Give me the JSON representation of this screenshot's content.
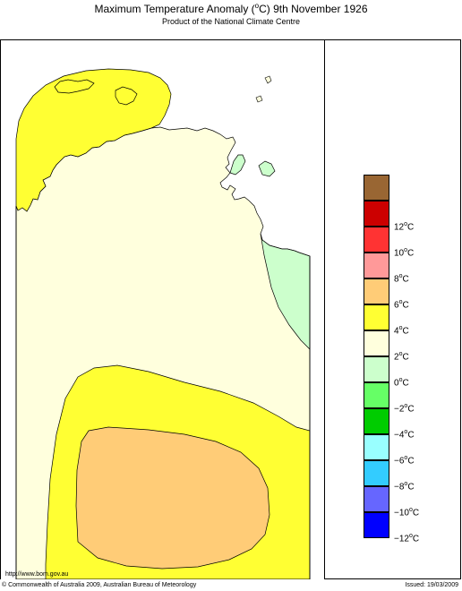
{
  "header": {
    "title_prefix": "Maximum Temperature Anomaly (",
    "title_unit_sup": "o",
    "title_suffix": "C)  9th November 1926",
    "subtitle": "Product of the National Climate Centre"
  },
  "legend": {
    "items": [
      {
        "label": "",
        "color": "#996633"
      },
      {
        "label": "12",
        "color": "#cc0000"
      },
      {
        "label": "10",
        "color": "#ff3333"
      },
      {
        "label": "8",
        "color": "#ff9999"
      },
      {
        "label": "6",
        "color": "#ffcc77"
      },
      {
        "label": "4",
        "color": "#ffff33"
      },
      {
        "label": "2",
        "color": "#ffffdd"
      },
      {
        "label": "0",
        "color": "#ccffcc"
      },
      {
        "label": "−2",
        "color": "#66ff66"
      },
      {
        "label": "−4",
        "color": "#00cc00"
      },
      {
        "label": "−6",
        "color": "#99ffff"
      },
      {
        "label": "−8",
        "color": "#33ccff"
      },
      {
        "label": "−10",
        "color": "#6666ff"
      },
      {
        "label": "−12",
        "color": "#0000ff"
      }
    ],
    "unit_sup": "o",
    "unit": "C"
  },
  "map": {
    "region": "Northern Territory, Australia",
    "base_color": "#ffffdd",
    "sea_color": "#ffffff",
    "zones": [
      {
        "name": "top-end-anomaly-2-to-4",
        "color": "#ffff33"
      },
      {
        "name": "gulf-coast-anomaly-0-to-minus-2",
        "color": "#ccffcc"
      },
      {
        "name": "central-anomaly-2-to-4",
        "color": "#ffff33"
      },
      {
        "name": "central-anomaly-4-to-6",
        "color": "#ffcc77"
      }
    ]
  },
  "footer": {
    "url": "http://www.bom.gov.au",
    "copyright": "© Commonwealth of Australia 2009, Australian Bureau of Meteorology",
    "issued": "Issued: 19/03/2009"
  }
}
